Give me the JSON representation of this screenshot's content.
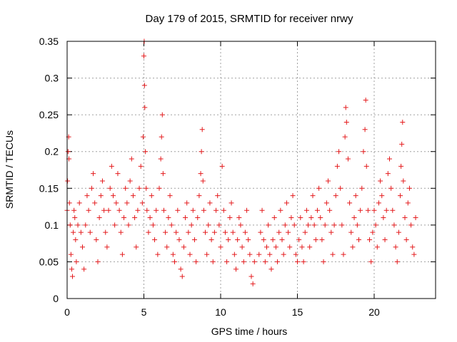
{
  "chart_data": {
    "type": "scatter",
    "title": "Day 179 of 2015, SRMTID for receiver nrwy",
    "xlabel": "GPS time / hours",
    "ylabel": "SRMTID / TECUs",
    "xlim": [
      0,
      24
    ],
    "ylim": [
      0,
      0.35
    ],
    "xticks": [
      0,
      5,
      10,
      15,
      20
    ],
    "yticks": [
      0,
      0.05,
      0.1,
      0.15,
      0.2,
      0.25,
      0.3,
      0.35
    ],
    "grid": true,
    "legend": "none",
    "marker": "+",
    "color": "#e41a1c",
    "series": [
      {
        "name": "SRMTID",
        "points": [
          [
            0.0,
            0.12
          ],
          [
            0.03,
            0.16
          ],
          [
            0.06,
            0.2
          ],
          [
            0.1,
            0.22
          ],
          [
            0.12,
            0.19
          ],
          [
            0.15,
            0.13
          ],
          [
            0.2,
            0.1
          ],
          [
            0.25,
            0.06
          ],
          [
            0.3,
            0.04
          ],
          [
            0.35,
            0.03
          ],
          [
            0.4,
            0.09
          ],
          [
            0.45,
            0.12
          ],
          [
            0.5,
            0.11
          ],
          [
            0.55,
            0.08
          ],
          [
            0.6,
            0.05
          ],
          [
            0.7,
            0.1
          ],
          [
            0.8,
            0.13
          ],
          [
            0.9,
            0.09
          ],
          [
            1.0,
            0.07
          ],
          [
            1.1,
            0.04
          ],
          [
            1.2,
            0.1
          ],
          [
            1.3,
            0.14
          ],
          [
            1.4,
            0.12
          ],
          [
            1.5,
            0.09
          ],
          [
            1.6,
            0.15
          ],
          [
            1.7,
            0.17
          ],
          [
            1.8,
            0.13
          ],
          [
            1.9,
            0.08
          ],
          [
            2.0,
            0.05
          ],
          [
            2.1,
            0.11
          ],
          [
            2.2,
            0.14
          ],
          [
            2.3,
            0.16
          ],
          [
            2.4,
            0.12
          ],
          [
            2.5,
            0.09
          ],
          [
            2.6,
            0.07
          ],
          [
            2.7,
            0.12
          ],
          [
            2.8,
            0.15
          ],
          [
            2.9,
            0.18
          ],
          [
            3.0,
            0.14
          ],
          [
            3.1,
            0.1
          ],
          [
            3.2,
            0.13
          ],
          [
            3.3,
            0.17
          ],
          [
            3.4,
            0.12
          ],
          [
            3.5,
            0.09
          ],
          [
            3.6,
            0.06
          ],
          [
            3.7,
            0.11
          ],
          [
            3.8,
            0.15
          ],
          [
            3.9,
            0.13
          ],
          [
            4.0,
            0.1
          ],
          [
            4.1,
            0.16
          ],
          [
            4.2,
            0.19
          ],
          [
            4.3,
            0.14
          ],
          [
            4.4,
            0.11
          ],
          [
            4.5,
            0.07
          ],
          [
            4.6,
            0.12
          ],
          [
            4.7,
            0.15
          ],
          [
            4.8,
            0.18
          ],
          [
            4.9,
            0.13
          ],
          [
            4.95,
            0.22
          ],
          [
            5.0,
            0.33
          ],
          [
            5.02,
            0.35
          ],
          [
            5.04,
            0.29
          ],
          [
            5.06,
            0.26
          ],
          [
            5.1,
            0.2
          ],
          [
            5.15,
            0.15
          ],
          [
            5.2,
            0.12
          ],
          [
            5.3,
            0.09
          ],
          [
            5.4,
            0.11
          ],
          [
            5.5,
            0.14
          ],
          [
            5.6,
            0.1
          ],
          [
            5.7,
            0.08
          ],
          [
            5.8,
            0.12
          ],
          [
            5.9,
            0.06
          ],
          [
            6.0,
            0.15
          ],
          [
            6.1,
            0.19
          ],
          [
            6.15,
            0.22
          ],
          [
            6.2,
            0.25
          ],
          [
            6.25,
            0.17
          ],
          [
            6.3,
            0.12
          ],
          [
            6.4,
            0.09
          ],
          [
            6.5,
            0.07
          ],
          [
            6.6,
            0.11
          ],
          [
            6.7,
            0.14
          ],
          [
            6.8,
            0.1
          ],
          [
            6.9,
            0.06
          ],
          [
            7.0,
            0.05
          ],
          [
            7.1,
            0.09
          ],
          [
            7.2,
            0.12
          ],
          [
            7.3,
            0.08
          ],
          [
            7.4,
            0.04
          ],
          [
            7.5,
            0.03
          ],
          [
            7.6,
            0.07
          ],
          [
            7.7,
            0.11
          ],
          [
            7.8,
            0.13
          ],
          [
            7.9,
            0.09
          ],
          [
            8.0,
            0.06
          ],
          [
            8.1,
            0.1
          ],
          [
            8.2,
            0.12
          ],
          [
            8.3,
            0.08
          ],
          [
            8.4,
            0.05
          ],
          [
            8.5,
            0.11
          ],
          [
            8.6,
            0.14
          ],
          [
            8.7,
            0.17
          ],
          [
            8.75,
            0.2
          ],
          [
            8.8,
            0.23
          ],
          [
            8.85,
            0.16
          ],
          [
            8.9,
            0.12
          ],
          [
            9.0,
            0.09
          ],
          [
            9.1,
            0.06
          ],
          [
            9.2,
            0.1
          ],
          [
            9.3,
            0.13
          ],
          [
            9.4,
            0.08
          ],
          [
            9.5,
            0.05
          ],
          [
            9.6,
            0.09
          ],
          [
            9.7,
            0.12
          ],
          [
            9.8,
            0.14
          ],
          [
            9.9,
            0.1
          ],
          [
            10.0,
            0.07
          ],
          [
            10.1,
            0.18
          ],
          [
            10.2,
            0.12
          ],
          [
            10.3,
            0.09
          ],
          [
            10.4,
            0.05
          ],
          [
            10.5,
            0.08
          ],
          [
            10.6,
            0.11
          ],
          [
            10.7,
            0.13
          ],
          [
            10.8,
            0.09
          ],
          [
            10.9,
            0.06
          ],
          [
            11.0,
            0.04
          ],
          [
            11.1,
            0.08
          ],
          [
            11.2,
            0.11
          ],
          [
            11.3,
            0.1
          ],
          [
            11.4,
            0.07
          ],
          [
            11.5,
            0.05
          ],
          [
            11.6,
            0.09
          ],
          [
            11.7,
            0.12
          ],
          [
            11.8,
            0.08
          ],
          [
            11.9,
            0.06
          ],
          [
            12.0,
            0.03
          ],
          [
            12.1,
            0.02
          ],
          [
            12.2,
            0.05
          ],
          [
            12.5,
            0.06
          ],
          [
            12.6,
            0.09
          ],
          [
            12.7,
            0.12
          ],
          [
            12.8,
            0.08
          ],
          [
            12.9,
            0.05
          ],
          [
            13.0,
            0.07
          ],
          [
            13.1,
            0.1
          ],
          [
            13.2,
            0.06
          ],
          [
            13.3,
            0.04
          ],
          [
            13.4,
            0.08
          ],
          [
            13.5,
            0.11
          ],
          [
            13.6,
            0.07
          ],
          [
            13.7,
            0.05
          ],
          [
            13.8,
            0.09
          ],
          [
            13.9,
            0.12
          ],
          [
            14.0,
            0.08
          ],
          [
            14.1,
            0.06
          ],
          [
            14.2,
            0.1
          ],
          [
            14.3,
            0.13
          ],
          [
            14.4,
            0.09
          ],
          [
            14.5,
            0.07
          ],
          [
            14.6,
            0.11
          ],
          [
            14.7,
            0.14
          ],
          [
            14.8,
            0.1
          ],
          [
            14.9,
            0.06
          ],
          [
            15.0,
            0.05
          ],
          [
            15.1,
            0.08
          ],
          [
            15.2,
            0.11
          ],
          [
            15.3,
            0.07
          ],
          [
            15.4,
            0.05
          ],
          [
            15.5,
            0.09
          ],
          [
            15.6,
            0.12
          ],
          [
            15.7,
            0.1
          ],
          [
            15.8,
            0.07
          ],
          [
            15.9,
            0.11
          ],
          [
            16.0,
            0.14
          ],
          [
            16.1,
            0.1
          ],
          [
            16.2,
            0.08
          ],
          [
            16.3,
            0.12
          ],
          [
            16.4,
            0.15
          ],
          [
            16.5,
            0.11
          ],
          [
            16.6,
            0.08
          ],
          [
            16.7,
            0.05
          ],
          [
            16.8,
            0.1
          ],
          [
            16.9,
            0.13
          ],
          [
            17.0,
            0.16
          ],
          [
            17.1,
            0.12
          ],
          [
            17.2,
            0.09
          ],
          [
            17.3,
            0.06
          ],
          [
            17.4,
            0.1
          ],
          [
            17.5,
            0.14
          ],
          [
            17.6,
            0.18
          ],
          [
            17.7,
            0.2
          ],
          [
            17.8,
            0.15
          ],
          [
            17.9,
            0.1
          ],
          [
            18.0,
            0.06
          ],
          [
            18.1,
            0.22
          ],
          [
            18.15,
            0.26
          ],
          [
            18.2,
            0.24
          ],
          [
            18.3,
            0.19
          ],
          [
            18.4,
            0.13
          ],
          [
            18.5,
            0.09
          ],
          [
            18.6,
            0.07
          ],
          [
            18.7,
            0.11
          ],
          [
            18.8,
            0.14
          ],
          [
            18.9,
            0.1
          ],
          [
            19.0,
            0.08
          ],
          [
            19.1,
            0.12
          ],
          [
            19.2,
            0.15
          ],
          [
            19.3,
            0.2
          ],
          [
            19.4,
            0.23
          ],
          [
            19.45,
            0.27
          ],
          [
            19.5,
            0.18
          ],
          [
            19.6,
            0.12
          ],
          [
            19.7,
            0.08
          ],
          [
            19.8,
            0.05
          ],
          [
            19.9,
            0.09
          ],
          [
            20.0,
            0.12
          ],
          [
            20.1,
            0.1
          ],
          [
            20.2,
            0.07
          ],
          [
            20.3,
            0.13
          ],
          [
            20.4,
            0.16
          ],
          [
            20.5,
            0.14
          ],
          [
            20.6,
            0.11
          ],
          [
            20.7,
            0.08
          ],
          [
            20.8,
            0.12
          ],
          [
            20.9,
            0.17
          ],
          [
            21.0,
            0.19
          ],
          [
            21.1,
            0.15
          ],
          [
            21.2,
            0.12
          ],
          [
            21.3,
            0.1
          ],
          [
            21.4,
            0.07
          ],
          [
            21.5,
            0.05
          ],
          [
            21.6,
            0.09
          ],
          [
            21.7,
            0.14
          ],
          [
            21.75,
            0.18
          ],
          [
            21.8,
            0.21
          ],
          [
            21.85,
            0.24
          ],
          [
            21.9,
            0.16
          ],
          [
            22.0,
            0.11
          ],
          [
            22.1,
            0.08
          ],
          [
            22.2,
            0.13
          ],
          [
            22.3,
            0.15
          ],
          [
            22.4,
            0.1
          ],
          [
            22.5,
            0.07
          ],
          [
            22.6,
            0.06
          ],
          [
            22.7,
            0.11
          ]
        ]
      }
    ]
  }
}
